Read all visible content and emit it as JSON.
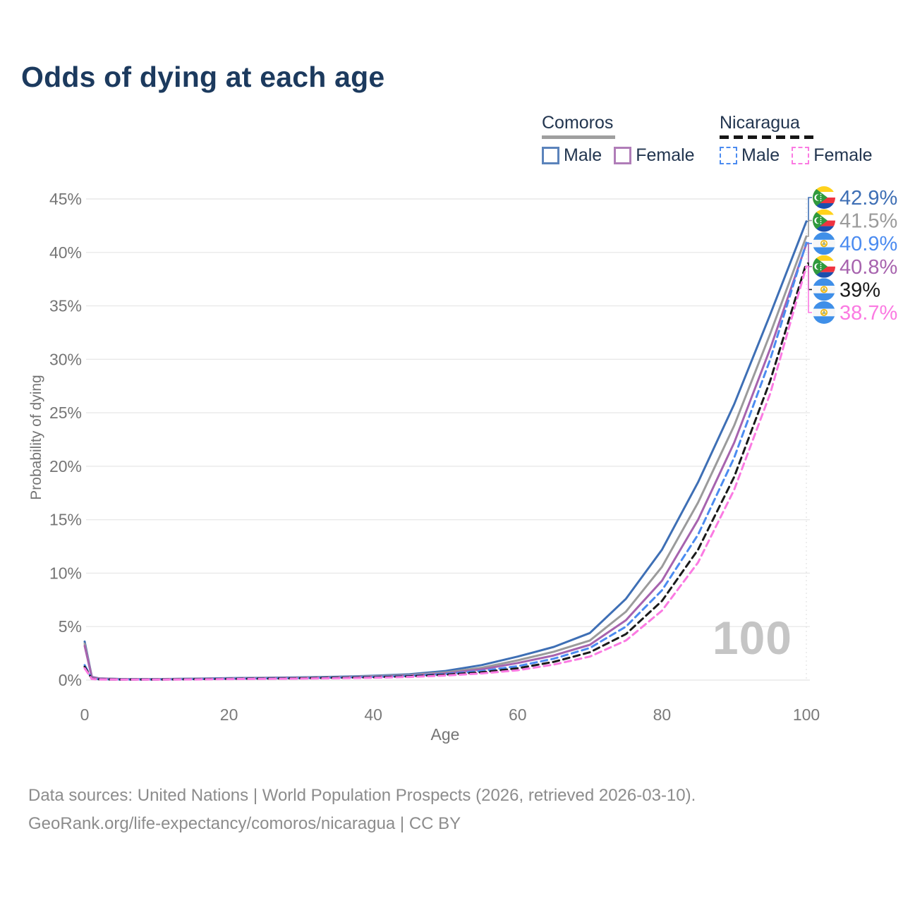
{
  "title": "Odds of dying at each age",
  "legend": {
    "comoros": {
      "title": "Comoros",
      "male": "Male",
      "female": "Female"
    },
    "nicaragua": {
      "title": "Nicaragua",
      "male": "Male",
      "female": "Female"
    }
  },
  "watermark": "100",
  "footer": {
    "line1": "Data sources: United Nations | World Population Prospects (2026, retrieved 2026-03-10).",
    "line2": "GeoRank.org/life-expectancy/comoros/nicaragua | CC BY"
  },
  "chart_data": {
    "type": "line",
    "title": "Odds of dying at each age",
    "xlabel": "Age",
    "ylabel": "Probability of dying",
    "xlim": [
      0,
      100
    ],
    "ylim": [
      0,
      45
    ],
    "grid": "horizontal",
    "x_ticks": [
      "0",
      "20",
      "40",
      "60",
      "80",
      "100"
    ],
    "y_ticks": [
      "0%",
      "5%",
      "10%",
      "15%",
      "20%",
      "25%",
      "30%",
      "35%",
      "40%",
      "45%"
    ],
    "ages": [
      0,
      1,
      2,
      5,
      10,
      15,
      20,
      25,
      30,
      35,
      40,
      45,
      50,
      55,
      60,
      65,
      70,
      75,
      80,
      85,
      90,
      95,
      100
    ],
    "series": [
      {
        "name": "Comoros Male",
        "country": "Comoros",
        "sex": "Male",
        "style": "solid",
        "color": "#3e6fb5",
        "end_label": "42.9%",
        "values": [
          3.6,
          0.3,
          0.16,
          0.1,
          0.09,
          0.13,
          0.18,
          0.22,
          0.26,
          0.31,
          0.4,
          0.55,
          0.85,
          1.4,
          2.2,
          3.1,
          4.4,
          7.6,
          12.2,
          18.5,
          25.8,
          34.2,
          42.9
        ]
      },
      {
        "name": "Comoros Both sexes",
        "country": "Comoros",
        "sex": "Both",
        "style": "solid",
        "color": "#9b9b9b",
        "end_label": "41.5%",
        "values": [
          3.4,
          0.28,
          0.15,
          0.09,
          0.08,
          0.12,
          0.16,
          0.2,
          0.23,
          0.28,
          0.36,
          0.48,
          0.72,
          1.15,
          1.85,
          2.65,
          3.7,
          6.4,
          10.6,
          16.6,
          23.8,
          32.4,
          41.5
        ]
      },
      {
        "name": "Comoros Female",
        "country": "Comoros",
        "sex": "Female",
        "style": "solid",
        "color": "#a763ae",
        "end_label": "40.8%",
        "values": [
          3.2,
          0.26,
          0.14,
          0.08,
          0.07,
          0.1,
          0.14,
          0.17,
          0.2,
          0.25,
          0.32,
          0.42,
          0.62,
          1.0,
          1.6,
          2.3,
          3.3,
          5.6,
          9.3,
          15.0,
          22.2,
          31.0,
          40.8
        ]
      },
      {
        "name": "Nicaragua Male",
        "country": "Nicaragua",
        "sex": "Male",
        "style": "dashed",
        "color": "#4b8bf0",
        "end_label": "40.9%",
        "values": [
          1.4,
          0.12,
          0.08,
          0.05,
          0.05,
          0.09,
          0.13,
          0.16,
          0.19,
          0.24,
          0.3,
          0.4,
          0.57,
          0.85,
          1.3,
          2.0,
          3.0,
          5.0,
          8.4,
          13.6,
          20.8,
          30.0,
          40.9
        ]
      },
      {
        "name": "Nicaragua Both sexes",
        "country": "Nicaragua",
        "sex": "Both",
        "style": "dashed",
        "color": "#1a1a1a",
        "end_label": "39%",
        "values": [
          1.25,
          0.11,
          0.07,
          0.045,
          0.045,
          0.08,
          0.11,
          0.14,
          0.17,
          0.21,
          0.26,
          0.35,
          0.5,
          0.73,
          1.1,
          1.7,
          2.6,
          4.3,
          7.4,
          12.2,
          19.0,
          28.0,
          39.0
        ]
      },
      {
        "name": "Nicaragua Female",
        "country": "Nicaragua",
        "sex": "Female",
        "style": "dashed",
        "color": "#fb7ae2",
        "end_label": "38.7%",
        "values": [
          1.1,
          0.1,
          0.06,
          0.04,
          0.04,
          0.06,
          0.09,
          0.11,
          0.14,
          0.17,
          0.22,
          0.29,
          0.42,
          0.62,
          0.92,
          1.45,
          2.2,
          3.7,
          6.5,
          11.0,
          17.8,
          26.8,
          38.7
        ]
      }
    ],
    "colors": {
      "grid": "#e9e9e9",
      "axis_text": "#7a7a7a",
      "comoros_flag": {
        "green": "#2f9a3e",
        "yellow": "#ffd21c",
        "white": "#ffffff",
        "red": "#ef3340",
        "blue": "#1a4fae"
      },
      "nicaragua_flag": {
        "blue": "#3f8fe8",
        "white": "#f7f7f7",
        "gold": "#f0b400"
      }
    }
  }
}
